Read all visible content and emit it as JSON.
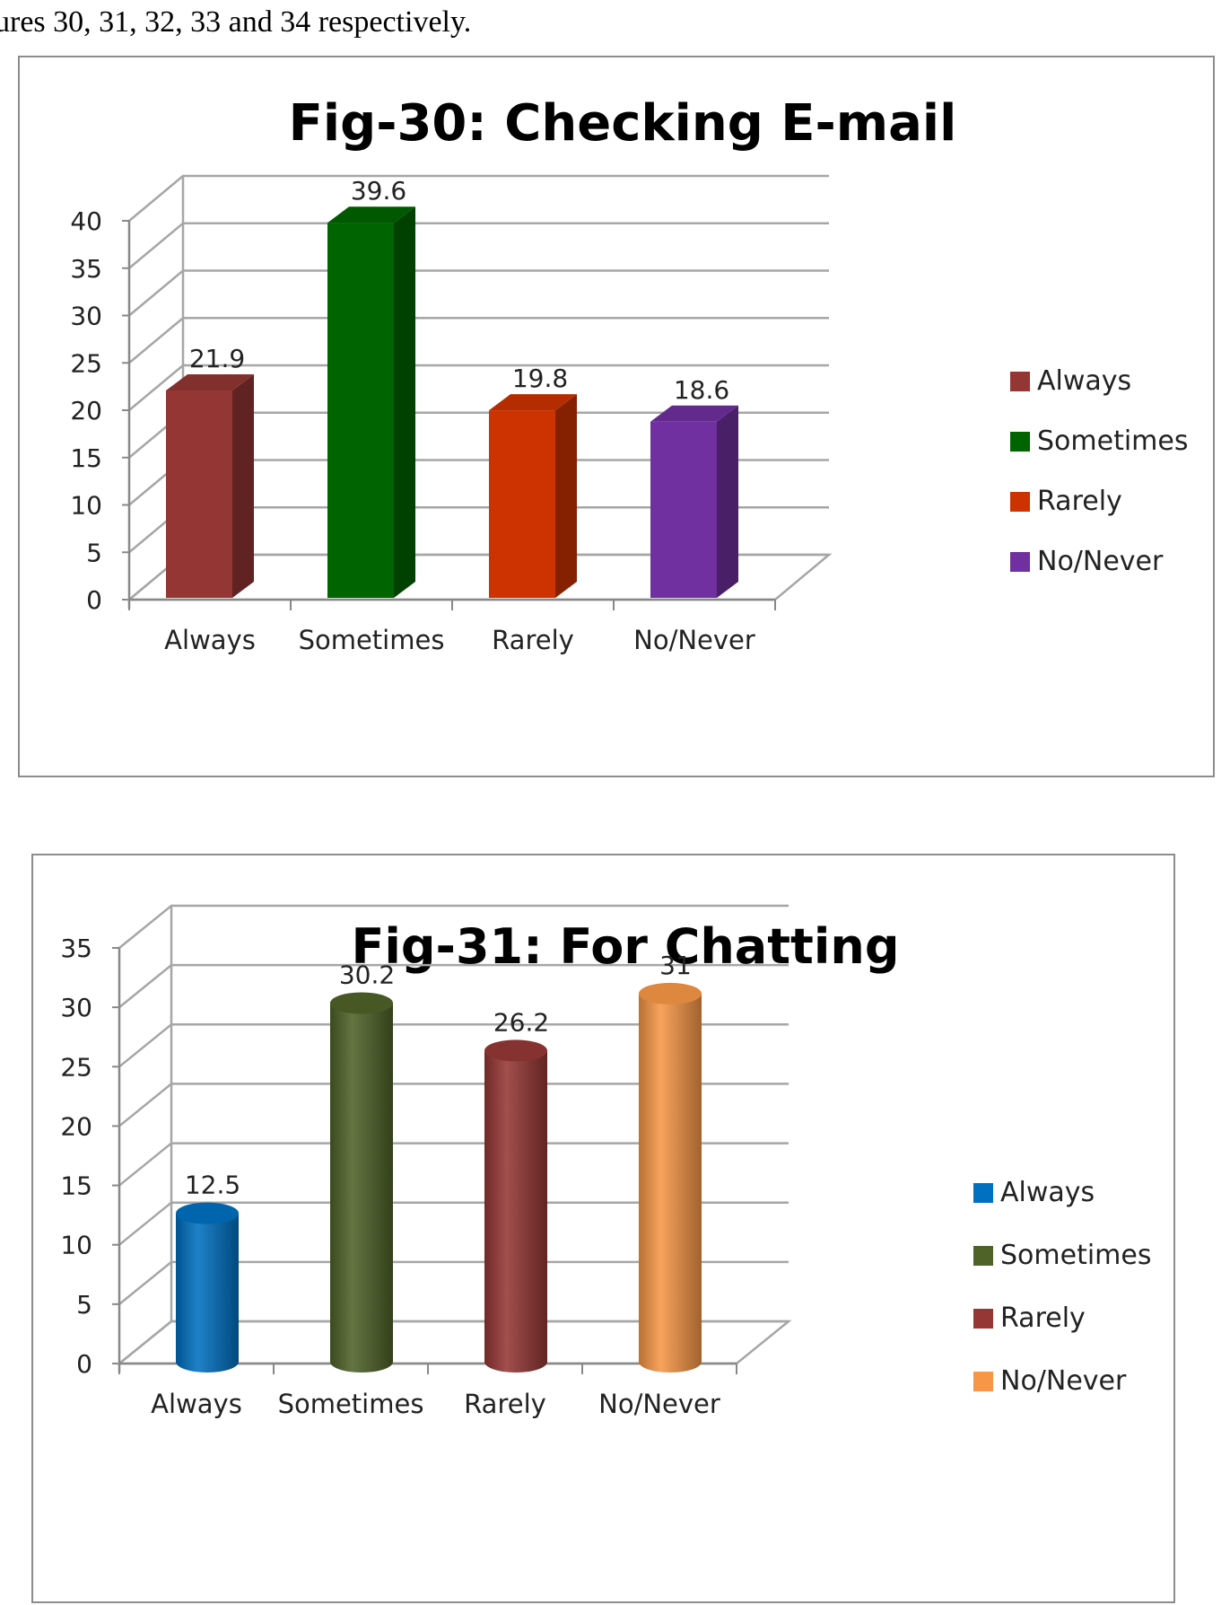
{
  "intro_text": "ures 30, 31, 32, 33 and 34 respectively.",
  "chart_data": [
    {
      "type": "bar",
      "style": "3d-box",
      "title": "Fig-30: Checking E-mail",
      "categories": [
        "Always",
        "Sometimes",
        "Rarely",
        "No/Never"
      ],
      "values": [
        21.9,
        39.6,
        19.8,
        18.6
      ],
      "value_labels": [
        "21.9",
        "39.6",
        "19.8",
        "18.6"
      ],
      "colors": [
        "#943634",
        "#006400",
        "#cc3300",
        "#7030a0"
      ],
      "ylim": [
        0,
        40
      ],
      "yticks": [
        "0",
        "5",
        "10",
        "15",
        "20",
        "25",
        "30",
        "35",
        "40"
      ],
      "grid": true,
      "legend": {
        "position": "right",
        "entries": [
          "Always",
          "Sometimes",
          "Rarely",
          "No/Never"
        ]
      },
      "xlabel": "",
      "ylabel": ""
    },
    {
      "type": "bar",
      "style": "3d-cylinder",
      "title": "Fig-31: For Chatting",
      "categories": [
        "Always",
        "Sometimes",
        "Rarely",
        "No/Never"
      ],
      "values": [
        12.5,
        30.2,
        26.2,
        31
      ],
      "value_labels": [
        "12.5",
        "30.2",
        "26.2",
        "31"
      ],
      "colors": [
        "#0070c0",
        "#4f6228",
        "#953735",
        "#f79646"
      ],
      "ylim": [
        0,
        35
      ],
      "yticks": [
        "0",
        "5",
        "10",
        "15",
        "20",
        "25",
        "30",
        "35"
      ],
      "grid": true,
      "legend": {
        "position": "right",
        "entries": [
          "Always",
          "Sometimes",
          "Rarely",
          "No/Never"
        ]
      },
      "xlabel": "",
      "ylabel": ""
    }
  ]
}
